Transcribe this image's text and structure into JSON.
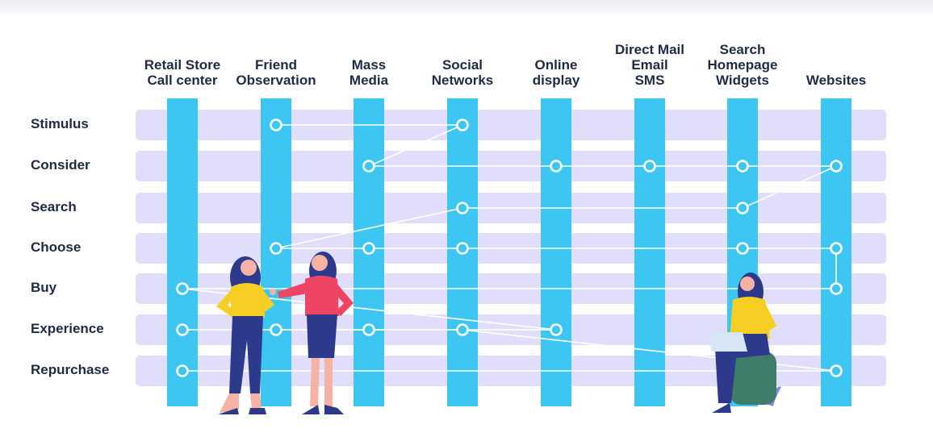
{
  "columns": [
    {
      "id": "retail",
      "label": "Retail Store\nCall center"
    },
    {
      "id": "friend",
      "label": "Friend\nObservation"
    },
    {
      "id": "mass",
      "label": "Mass\nMedia"
    },
    {
      "id": "social",
      "label": "Social\nNetworks"
    },
    {
      "id": "online",
      "label": "Online\ndisplay"
    },
    {
      "id": "direct",
      "label": "Direct Mail\nEmail\nSMS"
    },
    {
      "id": "search",
      "label": "Search\nHomepage\nWidgets"
    },
    {
      "id": "websites",
      "label": "Websites"
    }
  ],
  "rows": [
    {
      "id": "stimulus",
      "label": "Stimulus"
    },
    {
      "id": "consider",
      "label": "Consider"
    },
    {
      "id": "search",
      "label": "Search"
    },
    {
      "id": "choose",
      "label": "Choose"
    },
    {
      "id": "buy",
      "label": "Buy"
    },
    {
      "id": "experience",
      "label": "Experience"
    },
    {
      "id": "repurchase",
      "label": "Repurchase"
    }
  ],
  "nodes": [
    {
      "row": "stimulus",
      "col": "friend"
    },
    {
      "row": "stimulus",
      "col": "social"
    },
    {
      "row": "consider",
      "col": "mass"
    },
    {
      "row": "consider",
      "col": "online"
    },
    {
      "row": "consider",
      "col": "direct"
    },
    {
      "row": "consider",
      "col": "search"
    },
    {
      "row": "consider",
      "col": "websites"
    },
    {
      "row": "search",
      "col": "social"
    },
    {
      "row": "search",
      "col": "search"
    },
    {
      "row": "choose",
      "col": "friend"
    },
    {
      "row": "choose",
      "col": "mass"
    },
    {
      "row": "choose",
      "col": "social"
    },
    {
      "row": "choose",
      "col": "search"
    },
    {
      "row": "choose",
      "col": "websites"
    },
    {
      "row": "buy",
      "col": "retail"
    },
    {
      "row": "buy",
      "col": "websites"
    },
    {
      "row": "experience",
      "col": "retail"
    },
    {
      "row": "experience",
      "col": "friend"
    },
    {
      "row": "experience",
      "col": "mass"
    },
    {
      "row": "experience",
      "col": "social"
    },
    {
      "row": "experience",
      "col": "online"
    },
    {
      "row": "repurchase",
      "col": "retail"
    },
    {
      "row": "repurchase",
      "col": "websites"
    }
  ],
  "connections": [
    {
      "from": [
        "stimulus",
        "friend"
      ],
      "to": [
        "stimulus",
        "social"
      ]
    },
    {
      "from": [
        "stimulus",
        "social"
      ],
      "to": [
        "consider",
        "mass"
      ]
    },
    {
      "from": [
        "consider",
        "mass"
      ],
      "to": [
        "consider",
        "online"
      ]
    },
    {
      "from": [
        "consider",
        "online"
      ],
      "to": [
        "consider",
        "direct"
      ]
    },
    {
      "from": [
        "consider",
        "direct"
      ],
      "to": [
        "consider",
        "search"
      ]
    },
    {
      "from": [
        "consider",
        "search"
      ],
      "to": [
        "consider",
        "websites"
      ]
    },
    {
      "from": [
        "consider",
        "websites"
      ],
      "to": [
        "search",
        "search"
      ]
    },
    {
      "from": [
        "search",
        "search"
      ],
      "to": [
        "search",
        "social"
      ]
    },
    {
      "from": [
        "search",
        "social"
      ],
      "to": [
        "choose",
        "friend"
      ]
    },
    {
      "from": [
        "choose",
        "friend"
      ],
      "to": [
        "choose",
        "mass"
      ]
    },
    {
      "from": [
        "choose",
        "mass"
      ],
      "to": [
        "choose",
        "social"
      ]
    },
    {
      "from": [
        "choose",
        "social"
      ],
      "to": [
        "choose",
        "search"
      ]
    },
    {
      "from": [
        "choose",
        "search"
      ],
      "to": [
        "choose",
        "websites"
      ]
    },
    {
      "from": [
        "choose",
        "websites"
      ],
      "to": [
        "buy",
        "websites"
      ]
    },
    {
      "from": [
        "buy",
        "websites"
      ],
      "to": [
        "buy",
        "retail"
      ]
    },
    {
      "from": [
        "buy",
        "retail"
      ],
      "to": [
        "experience",
        "online"
      ]
    },
    {
      "from": [
        "experience",
        "online"
      ],
      "to": [
        "experience",
        "friend"
      ]
    },
    {
      "from": [
        "experience",
        "retail"
      ],
      "to": [
        "experience",
        "mass"
      ]
    },
    {
      "from": [
        "experience",
        "friend"
      ],
      "to": [
        "experience",
        "social"
      ]
    },
    {
      "from": [
        "experience",
        "social"
      ],
      "to": [
        "repurchase",
        "websites"
      ]
    },
    {
      "from": [
        "repurchase",
        "websites"
      ],
      "to": [
        "repurchase",
        "retail"
      ]
    }
  ],
  "colors": {
    "column_bar": "#3ec6f3",
    "row_band": "#e0defa",
    "label_text": "#1f2a44",
    "node_fill": "#3ec6f3",
    "node_stroke": "#ffffff",
    "connector": "#ffffff",
    "person_top_yellow": "#f7cf24",
    "person_top_pink": "#ee4565",
    "person_pants": "#2d3a8c",
    "person_hair": "#2d3a8c",
    "person_skin": "#f6b3a3",
    "laptop": "#d6e6f7",
    "seat": "#3f7d6a",
    "plant": "#8a83e8"
  },
  "illustrations": [
    "woman-pointing-figure",
    "woman-arms-on-hips-figure",
    "woman-with-laptop-figure"
  ]
}
